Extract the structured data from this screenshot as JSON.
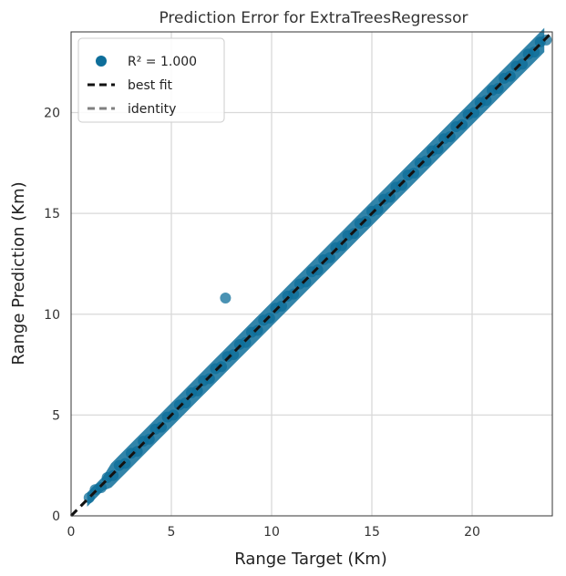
{
  "chart_data": {
    "type": "scatter",
    "title": "Prediction Error for ExtraTreesRegressor",
    "xlabel": "Range Target (Km)",
    "ylabel": "Range Prediction (Km)",
    "xlim": [
      0,
      24
    ],
    "ylim": [
      0,
      24
    ],
    "xticks": [
      "0",
      "5",
      "10",
      "15",
      "20"
    ],
    "yticks": [
      "0",
      "5",
      "10",
      "15",
      "20"
    ],
    "grid": true,
    "legend_position": "top-left",
    "legend": [
      {
        "label": "R² = 1.000",
        "kind": "marker"
      },
      {
        "label": "best fit",
        "kind": "line"
      },
      {
        "label": "identity",
        "kind": "line"
      }
    ],
    "r2": "1.000",
    "series": [
      {
        "x": [
          0.9,
          1.2,
          1.5,
          1.8,
          2.1,
          2.4,
          2.7,
          3.0,
          3.3,
          3.6,
          3.9,
          4.2,
          4.5,
          4.8,
          5.1,
          5.4,
          5.7,
          6.0,
          6.3,
          6.6,
          6.9,
          7.2,
          7.5,
          7.8,
          8.1,
          8.4,
          8.7,
          9.0,
          9.3,
          9.6,
          9.9,
          10.2,
          10.5,
          10.8,
          11.1,
          11.4,
          11.7,
          12.0,
          12.3,
          12.6,
          12.9,
          13.2,
          13.5,
          13.8,
          14.1,
          14.4,
          14.7,
          15.0,
          15.3,
          15.6,
          15.9,
          16.2,
          16.5,
          16.8,
          17.1,
          17.4,
          17.7,
          18.0,
          18.3,
          18.6,
          18.9,
          19.2,
          19.5,
          19.8,
          20.1,
          20.4,
          20.7,
          21.0,
          21.3,
          21.6,
          21.9,
          22.2,
          22.5,
          22.8,
          23.1,
          23.4,
          23.7,
          7.7
        ],
        "y": [
          0.9,
          1.3,
          1.4,
          1.9,
          2.0,
          2.5,
          2.6,
          3.1,
          3.2,
          3.7,
          3.8,
          4.3,
          4.4,
          4.9,
          5.0,
          5.5,
          5.6,
          6.1,
          6.2,
          6.7,
          6.8,
          7.3,
          7.4,
          7.9,
          8.0,
          8.5,
          8.6,
          9.1,
          9.2,
          9.7,
          9.8,
          10.3,
          10.4,
          10.9,
          11.0,
          11.5,
          11.6,
          12.1,
          12.2,
          12.7,
          12.8,
          13.3,
          13.4,
          13.9,
          14.0,
          14.5,
          14.6,
          15.1,
          15.2,
          15.7,
          15.8,
          16.3,
          16.4,
          16.9,
          17.0,
          17.5,
          17.6,
          18.1,
          18.2,
          18.7,
          18.8,
          19.3,
          19.4,
          19.9,
          20.0,
          20.5,
          20.6,
          21.1,
          21.2,
          21.7,
          21.8,
          22.3,
          22.4,
          22.9,
          23.0,
          23.5,
          23.6,
          10.8
        ]
      }
    ],
    "lines": [
      {
        "name": "best fit",
        "from": [
          0,
          0
        ],
        "to": [
          24,
          24
        ]
      },
      {
        "name": "identity",
        "from": [
          0,
          0
        ],
        "to": [
          24,
          24
        ]
      }
    ],
    "colors": {
      "points": "#0e6e9a",
      "best_fit": "#111111",
      "identity": "#808080",
      "grid": "#d9d9d9",
      "axes": "#333333"
    }
  }
}
